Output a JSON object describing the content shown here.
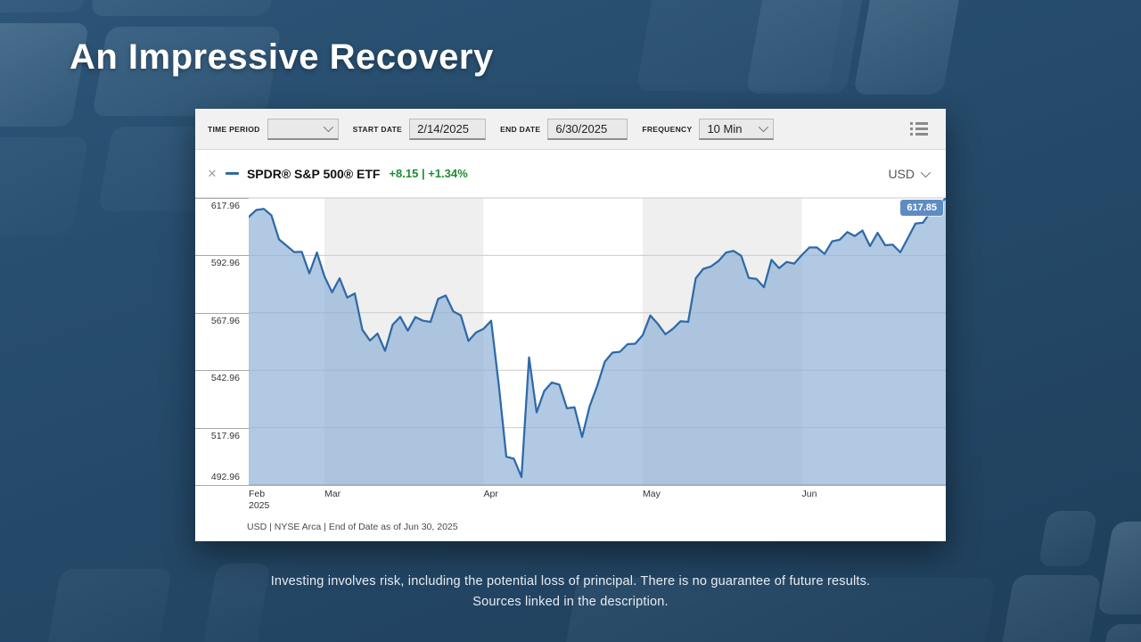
{
  "slide": {
    "title": "An Impressive Recovery",
    "disclaimer_line1": "Investing involves risk, including the potential loss of principal. There is no guarantee of future results.",
    "disclaimer_line2": "Sources linked in the description."
  },
  "chart_panel": {
    "toolbar": {
      "time_period_label": "TIME PERIOD",
      "time_period_value": "",
      "start_date_label": "START DATE",
      "start_date_value": "2/14/2025",
      "end_date_label": "END DATE",
      "end_date_value": "6/30/2025",
      "frequency_label": "FREQUENCY",
      "frequency_value": "10 Min"
    },
    "header": {
      "close_icon": "×",
      "series_name": "SPDR® S&P 500® ETF",
      "change_text": "+8.15 | +1.34%",
      "currency": "USD"
    },
    "last_price_badge": "617.85",
    "footer": "USD | NYSE Arca | End of Date as of Jun 30, 2025"
  },
  "chart_data": {
    "type": "area",
    "title": "SPDR S&P 500 ETF price, 2/14/2025 - 6/30/2025",
    "ylim": [
      492.96,
      617.96
    ],
    "y_ticks": [
      617.96,
      592.96,
      567.96,
      542.96,
      517.96,
      492.96
    ],
    "x_ticks": [
      {
        "label": "Feb",
        "sublabel": "2025",
        "month": "2025-02"
      },
      {
        "label": "Mar",
        "month": "2025-03"
      },
      {
        "label": "Apr",
        "month": "2025-04"
      },
      {
        "label": "May",
        "month": "2025-05"
      },
      {
        "label": "Jun",
        "month": "2025-06"
      }
    ],
    "shaded_months": [
      "2025-03",
      "2025-05"
    ],
    "grid": true,
    "legend_position": "top-left-header",
    "colors": {
      "line": "#2e6aa6",
      "fill": "rgba(136,173,212,0.66)",
      "band": "#efefef",
      "grid": "#cccccc",
      "axis": "#999999",
      "badge": "#5e8cc2",
      "change_green": "#1e8a34"
    },
    "series": [
      {
        "name": "SPDR® S&P 500® ETF",
        "points": [
          [
            "2025-02-14",
            609.7
          ],
          [
            "2025-02-18",
            612.7
          ],
          [
            "2025-02-19",
            613.2
          ],
          [
            "2025-02-20",
            610.4
          ],
          [
            "2025-02-21",
            599.9
          ],
          [
            "2025-02-24",
            597.2
          ],
          [
            "2025-02-25",
            594.4
          ],
          [
            "2025-02-26",
            594.5
          ],
          [
            "2025-02-27",
            585.1
          ],
          [
            "2025-02-28",
            594.2
          ],
          [
            "2025-03-03",
            583.8
          ],
          [
            "2025-03-04",
            576.9
          ],
          [
            "2025-03-05",
            583.0
          ],
          [
            "2025-03-06",
            574.6
          ],
          [
            "2025-03-07",
            576.4
          ],
          [
            "2025-03-10",
            560.6
          ],
          [
            "2025-03-11",
            555.9
          ],
          [
            "2025-03-12",
            558.9
          ],
          [
            "2025-03-13",
            551.4
          ],
          [
            "2025-03-14",
            562.8
          ],
          [
            "2025-03-17",
            566.2
          ],
          [
            "2025-03-18",
            560.2
          ],
          [
            "2025-03-19",
            566.1
          ],
          [
            "2025-03-20",
            564.5
          ],
          [
            "2025-03-21",
            564.0
          ],
          [
            "2025-03-24",
            574.0
          ],
          [
            "2025-03-25",
            575.5
          ],
          [
            "2025-03-26",
            568.6
          ],
          [
            "2025-03-27",
            566.8
          ],
          [
            "2025-03-28",
            555.7
          ],
          [
            "2025-03-31",
            559.4
          ],
          [
            "2025-04-01",
            561.0
          ],
          [
            "2025-04-02",
            564.5
          ],
          [
            "2025-04-03",
            536.7
          ],
          [
            "2025-04-04",
            505.3
          ],
          [
            "2025-04-07",
            504.4
          ],
          [
            "2025-04-08",
            496.5
          ],
          [
            "2025-04-09",
            548.6
          ],
          [
            "2025-04-10",
            524.6
          ],
          [
            "2025-04-11",
            533.9
          ],
          [
            "2025-04-14",
            537.6
          ],
          [
            "2025-04-15",
            536.7
          ],
          [
            "2025-04-16",
            526.4
          ],
          [
            "2025-04-17",
            526.8
          ],
          [
            "2025-04-21",
            513.9
          ],
          [
            "2025-04-22",
            527.3
          ],
          [
            "2025-04-23",
            536.2
          ],
          [
            "2025-04-24",
            546.7
          ],
          [
            "2025-04-25",
            550.6
          ],
          [
            "2025-04-28",
            551.0
          ],
          [
            "2025-04-29",
            554.3
          ],
          [
            "2025-04-30",
            554.5
          ],
          [
            "2025-05-01",
            558.2
          ],
          [
            "2025-05-02",
            566.8
          ],
          [
            "2025-05-05",
            563.1
          ],
          [
            "2025-05-06",
            558.6
          ],
          [
            "2025-05-07",
            561.0
          ],
          [
            "2025-05-08",
            564.3
          ],
          [
            "2025-05-09",
            564.0
          ],
          [
            "2025-05-12",
            583.0
          ],
          [
            "2025-05-13",
            587.1
          ],
          [
            "2025-05-14",
            588.1
          ],
          [
            "2025-05-15",
            590.5
          ],
          [
            "2025-05-16",
            594.2
          ],
          [
            "2025-05-19",
            594.9
          ],
          [
            "2025-05-20",
            592.8
          ],
          [
            "2025-05-21",
            583.1
          ],
          [
            "2025-05-22",
            582.7
          ],
          [
            "2025-05-23",
            579.1
          ],
          [
            "2025-05-27",
            591.0
          ],
          [
            "2025-05-28",
            587.4
          ],
          [
            "2025-05-29",
            590.1
          ],
          [
            "2025-05-30",
            589.4
          ],
          [
            "2025-06-02",
            593.1
          ],
          [
            "2025-06-03",
            596.4
          ],
          [
            "2025-06-04",
            596.4
          ],
          [
            "2025-06-05",
            593.6
          ],
          [
            "2025-06-06",
            599.1
          ],
          [
            "2025-06-09",
            599.8
          ],
          [
            "2025-06-10",
            603.1
          ],
          [
            "2025-06-11",
            601.4
          ],
          [
            "2025-06-12",
            603.8
          ],
          [
            "2025-06-13",
            597.0
          ],
          [
            "2025-06-16",
            602.8
          ],
          [
            "2025-06-17",
            597.4
          ],
          [
            "2025-06-18",
            597.6
          ],
          [
            "2025-06-20",
            594.3
          ],
          [
            "2025-06-23",
            600.5
          ],
          [
            "2025-06-24",
            606.8
          ],
          [
            "2025-06-25",
            607.2
          ],
          [
            "2025-06-26",
            612.1
          ],
          [
            "2025-06-27",
            614.9
          ],
          [
            "2025-06-30",
            617.85
          ]
        ]
      }
    ]
  }
}
